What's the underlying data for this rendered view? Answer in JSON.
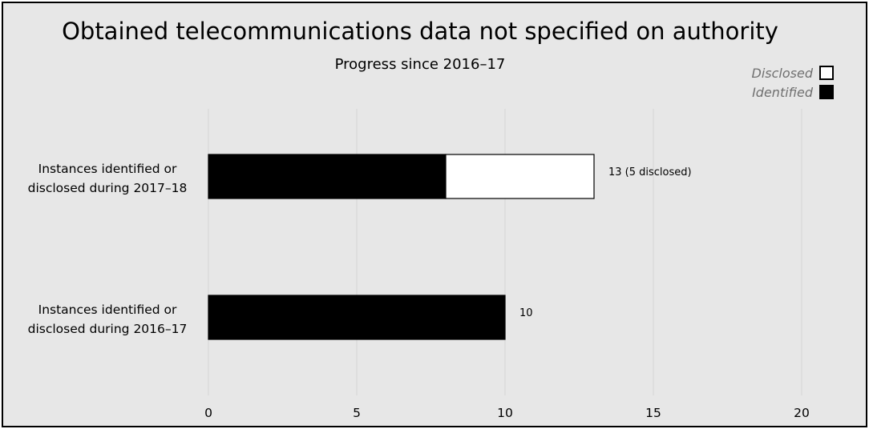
{
  "chart_data": {
    "type": "bar",
    "orientation": "horizontal",
    "stacked": true,
    "title": "Obtained telecommunications data not specified on authority",
    "subtitle": "Progress since 2016–17",
    "categories": [
      "Instances identified or disclosed during 2017–18",
      "Instances identified or disclosed during 2016–17"
    ],
    "category_lines": [
      [
        "Instances identified or",
        "disclosed during 2017–18"
      ],
      [
        "Instances identified or",
        "disclosed during 2016–17"
      ]
    ],
    "series": [
      {
        "name": "Identified",
        "color": "#000000",
        "values": [
          8,
          10
        ]
      },
      {
        "name": "Disclosed",
        "color": "#ffffff",
        "values": [
          5,
          0
        ]
      }
    ],
    "data_labels": [
      "13 (5 disclosed)",
      "10"
    ],
    "legend": {
      "position": "top-right",
      "order": [
        "Disclosed",
        "Identified"
      ]
    },
    "xlim": [
      0,
      20
    ],
    "xticks": [
      0,
      5,
      10,
      15,
      20
    ],
    "xtick_labels": [
      "0",
      "5",
      "10",
      "15",
      "20"
    ],
    "grid": "vertical",
    "background": "#e7e7e7"
  }
}
